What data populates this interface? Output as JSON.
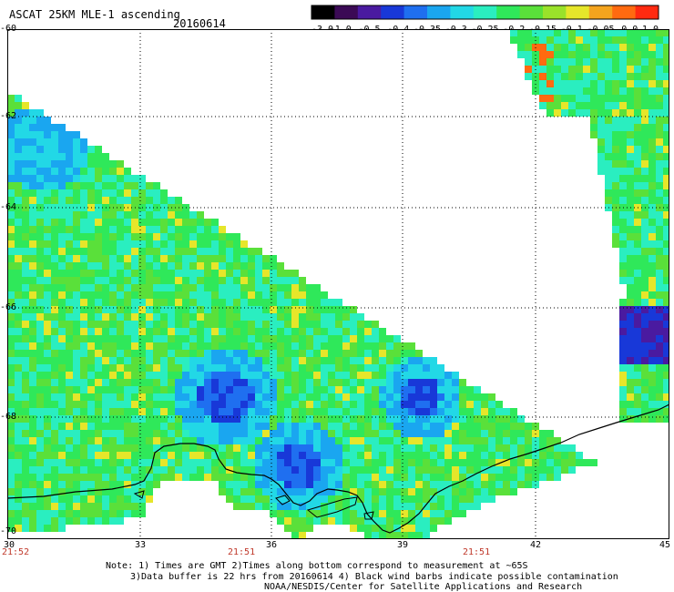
{
  "header": {
    "title": "ASCAT 25KM MLE-1 ascending",
    "date": "20160614"
  },
  "colorbar": {
    "labels": [
      "-3.0",
      "-1.0",
      "-0.5",
      "-0.4",
      "-0.35",
      "-0.3",
      "-0.25",
      "-0.2",
      "-0.15",
      "-0.1",
      "-0.05",
      "0.0",
      "1.0"
    ],
    "colors": [
      "#000000",
      "#3b0a55",
      "#4a1aa0",
      "#1838d8",
      "#1f6ff0",
      "#1aa6f0",
      "#22d8e6",
      "#2aeec0",
      "#2fe85a",
      "#5ae03a",
      "#9ae22a",
      "#e6e62a",
      "#f4a41e",
      "#ff6a10",
      "#ff2a10"
    ]
  },
  "axes": {
    "y_ticks": [
      "-60",
      "-62",
      "-64",
      "-66",
      "-68",
      "-70"
    ],
    "x_ticks": [
      "30",
      "33",
      "36",
      "39",
      "42",
      "45"
    ],
    "times": [
      "21:52",
      "21:51",
      "21:51"
    ]
  },
  "map": {
    "land_color": "#ffffff",
    "grid": "dotted"
  },
  "footer": {
    "note1": "Note: 1) Times are GMT 2)Times along bottom correspond to measurement at ~65S",
    "note2": "3)Data buffer is 22 hrs from 20160614 4) Black wind barbs indicate possible contamination",
    "note3": "NOAA/NESDIS/Center for Satellite Applications and Research"
  }
}
